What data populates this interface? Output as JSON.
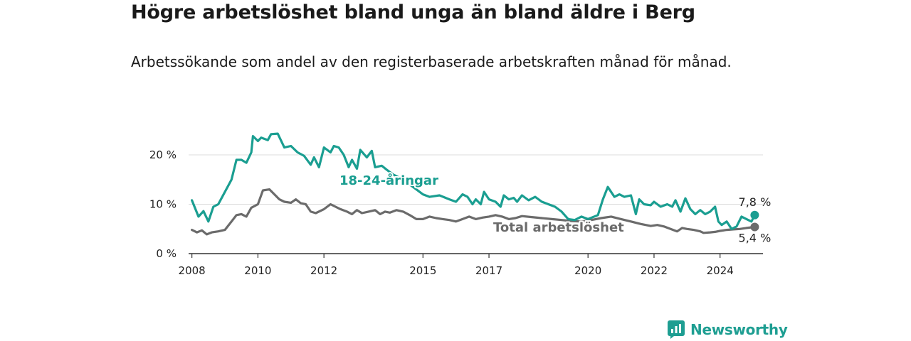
{
  "title": "Högre arbetslöshet bland unga än bland äldre i Berg",
  "subtitle": "Arbetssökande som andel av den registerbaserade arbetskraften månad för månad.",
  "brand": {
    "name": "Newsworthy",
    "icon": "newsworthy-logo-icon",
    "color": "#1e9e92"
  },
  "chart_data": {
    "type": "line",
    "xlabel": "",
    "ylabel": "",
    "x_range": [
      2007.9,
      2025.3
    ],
    "ylim": [
      0,
      20
    ],
    "x_ticks": [
      {
        "value": 2008,
        "label": "2008"
      },
      {
        "value": 2010,
        "label": "2010"
      },
      {
        "value": 2012,
        "label": "2012"
      },
      {
        "value": 2015,
        "label": "2015"
      },
      {
        "value": 2017,
        "label": "2017"
      },
      {
        "value": 2020,
        "label": "2020"
      },
      {
        "value": 2022,
        "label": "2022"
      },
      {
        "value": 2024,
        "label": "2024"
      }
    ],
    "y_ticks": [
      {
        "value": 0,
        "label": "0 %"
      },
      {
        "value": 10,
        "label": "10 %"
      },
      {
        "value": 20,
        "label": "20 %"
      }
    ],
    "grid": true,
    "series": [
      {
        "name": "18-24-åringar",
        "color": "#1a9e91",
        "end_label": "7,8 %",
        "points": [
          [
            2008.0,
            10.8
          ],
          [
            2008.2,
            7.5
          ],
          [
            2008.35,
            8.6
          ],
          [
            2008.5,
            6.5
          ],
          [
            2008.65,
            9.5
          ],
          [
            2008.8,
            10.0
          ],
          [
            2009.0,
            12.5
          ],
          [
            2009.2,
            15.0
          ],
          [
            2009.35,
            19.0
          ],
          [
            2009.5,
            19.0
          ],
          [
            2009.65,
            18.4
          ],
          [
            2009.8,
            20.5
          ],
          [
            2009.85,
            23.8
          ],
          [
            2010.0,
            22.8
          ],
          [
            2010.1,
            23.5
          ],
          [
            2010.3,
            23.0
          ],
          [
            2010.4,
            24.2
          ],
          [
            2010.6,
            24.3
          ],
          [
            2010.8,
            21.5
          ],
          [
            2011.0,
            21.8
          ],
          [
            2011.2,
            20.5
          ],
          [
            2011.4,
            19.8
          ],
          [
            2011.6,
            18.0
          ],
          [
            2011.7,
            19.5
          ],
          [
            2011.85,
            17.5
          ],
          [
            2012.0,
            21.5
          ],
          [
            2012.2,
            20.5
          ],
          [
            2012.3,
            21.8
          ],
          [
            2012.45,
            21.5
          ],
          [
            2012.6,
            20.0
          ],
          [
            2012.75,
            17.5
          ],
          [
            2012.85,
            19.0
          ],
          [
            2013.0,
            17.2
          ],
          [
            2013.1,
            21.0
          ],
          [
            2013.3,
            19.5
          ],
          [
            2013.45,
            20.8
          ],
          [
            2013.55,
            17.5
          ],
          [
            2013.75,
            17.8
          ],
          [
            2013.9,
            17.0
          ],
          [
            2014.1,
            16.0
          ],
          [
            2014.4,
            15.0
          ],
          [
            2014.7,
            13.5
          ],
          [
            2015.0,
            12.0
          ],
          [
            2015.2,
            11.5
          ],
          [
            2015.5,
            11.8
          ],
          [
            2015.8,
            11.0
          ],
          [
            2016.0,
            10.5
          ],
          [
            2016.2,
            12.0
          ],
          [
            2016.35,
            11.5
          ],
          [
            2016.5,
            10.0
          ],
          [
            2016.6,
            11.0
          ],
          [
            2016.75,
            10.0
          ],
          [
            2016.85,
            12.5
          ],
          [
            2017.0,
            11.0
          ],
          [
            2017.2,
            10.5
          ],
          [
            2017.35,
            9.5
          ],
          [
            2017.45,
            11.8
          ],
          [
            2017.6,
            11.0
          ],
          [
            2017.75,
            11.3
          ],
          [
            2017.85,
            10.5
          ],
          [
            2018.0,
            11.8
          ],
          [
            2018.2,
            10.8
          ],
          [
            2018.4,
            11.5
          ],
          [
            2018.6,
            10.5
          ],
          [
            2018.8,
            10.0
          ],
          [
            2019.0,
            9.5
          ],
          [
            2019.2,
            8.5
          ],
          [
            2019.4,
            7.0
          ],
          [
            2019.6,
            6.8
          ],
          [
            2019.8,
            7.5
          ],
          [
            2020.0,
            7.0
          ],
          [
            2020.3,
            7.8
          ],
          [
            2020.45,
            11.0
          ],
          [
            2020.6,
            13.5
          ],
          [
            2020.8,
            11.5
          ],
          [
            2020.95,
            12.0
          ],
          [
            2021.1,
            11.5
          ],
          [
            2021.3,
            11.8
          ],
          [
            2021.45,
            8.0
          ],
          [
            2021.55,
            11.0
          ],
          [
            2021.7,
            10.0
          ],
          [
            2021.9,
            9.8
          ],
          [
            2022.0,
            10.5
          ],
          [
            2022.2,
            9.5
          ],
          [
            2022.4,
            10.0
          ],
          [
            2022.55,
            9.5
          ],
          [
            2022.65,
            10.8
          ],
          [
            2022.8,
            8.5
          ],
          [
            2022.95,
            11.2
          ],
          [
            2023.1,
            9.0
          ],
          [
            2023.25,
            8.0
          ],
          [
            2023.4,
            8.8
          ],
          [
            2023.55,
            8.0
          ],
          [
            2023.7,
            8.5
          ],
          [
            2023.85,
            9.5
          ],
          [
            2023.95,
            6.5
          ],
          [
            2024.05,
            5.8
          ],
          [
            2024.2,
            6.5
          ],
          [
            2024.35,
            5.0
          ],
          [
            2024.5,
            5.5
          ],
          [
            2024.65,
            7.5
          ],
          [
            2024.8,
            7.0
          ],
          [
            2024.95,
            6.5
          ],
          [
            2025.05,
            7.8
          ]
        ]
      },
      {
        "name": "Total arbetslöshet",
        "color": "#6b6b6b",
        "end_label": "5,4 %",
        "points": [
          [
            2008.0,
            4.8
          ],
          [
            2008.15,
            4.3
          ],
          [
            2008.3,
            4.7
          ],
          [
            2008.45,
            3.9
          ],
          [
            2008.6,
            4.3
          ],
          [
            2008.8,
            4.5
          ],
          [
            2009.0,
            4.8
          ],
          [
            2009.2,
            6.5
          ],
          [
            2009.35,
            7.8
          ],
          [
            2009.5,
            8.0
          ],
          [
            2009.65,
            7.5
          ],
          [
            2009.8,
            9.3
          ],
          [
            2010.0,
            10.0
          ],
          [
            2010.15,
            12.8
          ],
          [
            2010.35,
            13.0
          ],
          [
            2010.5,
            12.0
          ],
          [
            2010.65,
            11.0
          ],
          [
            2010.8,
            10.5
          ],
          [
            2011.0,
            10.3
          ],
          [
            2011.15,
            11.0
          ],
          [
            2011.3,
            10.2
          ],
          [
            2011.45,
            10.0
          ],
          [
            2011.6,
            8.5
          ],
          [
            2011.75,
            8.2
          ],
          [
            2012.0,
            9.0
          ],
          [
            2012.2,
            10.0
          ],
          [
            2012.35,
            9.5
          ],
          [
            2012.5,
            9.0
          ],
          [
            2012.7,
            8.5
          ],
          [
            2012.85,
            8.0
          ],
          [
            2013.0,
            8.8
          ],
          [
            2013.15,
            8.2
          ],
          [
            2013.35,
            8.5
          ],
          [
            2013.55,
            8.8
          ],
          [
            2013.7,
            8.0
          ],
          [
            2013.85,
            8.5
          ],
          [
            2014.0,
            8.3
          ],
          [
            2014.2,
            8.8
          ],
          [
            2014.4,
            8.5
          ],
          [
            2014.6,
            7.8
          ],
          [
            2014.8,
            7.0
          ],
          [
            2015.0,
            7.0
          ],
          [
            2015.2,
            7.5
          ],
          [
            2015.4,
            7.2
          ],
          [
            2015.6,
            7.0
          ],
          [
            2015.8,
            6.8
          ],
          [
            2016.0,
            6.5
          ],
          [
            2016.2,
            7.0
          ],
          [
            2016.4,
            7.5
          ],
          [
            2016.6,
            7.0
          ],
          [
            2016.8,
            7.3
          ],
          [
            2017.0,
            7.5
          ],
          [
            2017.2,
            7.8
          ],
          [
            2017.4,
            7.5
          ],
          [
            2017.6,
            7.0
          ],
          [
            2017.8,
            7.2
          ],
          [
            2018.0,
            7.6
          ],
          [
            2018.3,
            7.4
          ],
          [
            2018.6,
            7.2
          ],
          [
            2018.9,
            7.0
          ],
          [
            2019.2,
            6.8
          ],
          [
            2019.5,
            6.6
          ],
          [
            2019.8,
            6.5
          ],
          [
            2020.1,
            6.8
          ],
          [
            2020.4,
            7.2
          ],
          [
            2020.7,
            7.5
          ],
          [
            2021.0,
            7.0
          ],
          [
            2021.3,
            6.5
          ],
          [
            2021.6,
            6.0
          ],
          [
            2021.9,
            5.6
          ],
          [
            2022.1,
            5.8
          ],
          [
            2022.3,
            5.5
          ],
          [
            2022.5,
            5.0
          ],
          [
            2022.7,
            4.5
          ],
          [
            2022.85,
            5.2
          ],
          [
            2023.0,
            5.0
          ],
          [
            2023.2,
            4.8
          ],
          [
            2023.4,
            4.5
          ],
          [
            2023.5,
            4.2
          ],
          [
            2023.7,
            4.3
          ],
          [
            2023.85,
            4.4
          ],
          [
            2024.0,
            4.6
          ],
          [
            2024.2,
            4.8
          ],
          [
            2024.4,
            4.9
          ],
          [
            2024.6,
            5.0
          ],
          [
            2024.8,
            5.2
          ],
          [
            2025.05,
            5.4
          ]
        ]
      }
    ]
  }
}
